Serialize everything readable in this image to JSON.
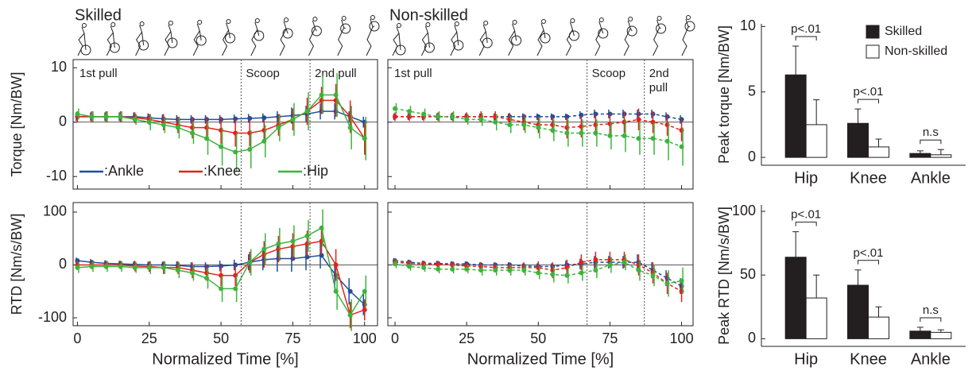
{
  "chart_data": [
    {
      "type": "line",
      "title": "Skilled",
      "ylabel": "Torque [Nm/BW]",
      "xlim": [
        -1.5,
        104.5
      ],
      "xticks": [
        0,
        25,
        50,
        75,
        100
      ],
      "ylim": [
        -12.3,
        11.5
      ],
      "yticks": [
        -10,
        0,
        10
      ],
      "zero_line": true,
      "phase_lines": [
        57,
        81
      ],
      "phases": [
        "1st pull",
        "Scoop",
        "2nd pull"
      ],
      "legend": "lower left",
      "x": [
        0,
        5,
        10,
        15,
        20,
        25,
        30,
        35,
        40,
        45,
        50,
        55,
        60,
        65,
        70,
        75,
        80,
        85,
        90,
        95,
        100
      ],
      "series": [
        {
          "name": ":Ankle",
          "color": "#1f4e9c",
          "linestyle": "solid",
          "values": [
            1,
            1,
            1,
            1,
            1,
            0.8,
            0.6,
            0.5,
            0.5,
            0.5,
            0.5,
            0.6,
            0.7,
            0.8,
            1,
            1.2,
            1.5,
            2,
            2,
            1,
            0
          ],
          "errors": [
            0.8,
            0.8,
            0.8,
            0.8,
            0.8,
            0.8,
            0.8,
            0.8,
            0.8,
            0.8,
            0.8,
            0.8,
            0.8,
            0.8,
            1,
            1.5,
            1.5,
            1.5,
            1.5,
            1,
            1
          ]
        },
        {
          "name": ":Knee",
          "color": "#e2231a",
          "linestyle": "solid",
          "values": [
            1,
            1,
            1,
            1,
            0.8,
            0.5,
            0,
            -0.5,
            -1,
            -1,
            -1.5,
            -2,
            -2,
            -1.5,
            -0.5,
            0.5,
            2,
            4,
            4,
            1,
            -3
          ],
          "errors": [
            1,
            1,
            1,
            1,
            1,
            1,
            1.5,
            1.5,
            2,
            2,
            2.5,
            2.5,
            2.5,
            2,
            2,
            2,
            2.5,
            2.5,
            3,
            3,
            3
          ]
        },
        {
          "name": ":Hip",
          "color": "#3cb43c",
          "linestyle": "solid",
          "values": [
            1.5,
            1,
            1,
            1,
            0.5,
            0,
            -0.5,
            -1,
            -2,
            -3,
            -4.5,
            -5.5,
            -5,
            -3.5,
            -1,
            0.5,
            2,
            5,
            5,
            -1,
            -3
          ],
          "errors": [
            1,
            1,
            1,
            1,
            1,
            1.5,
            1.5,
            2,
            2,
            3,
            3.5,
            3.5,
            3.5,
            3,
            2.5,
            3,
            3.5,
            3.5,
            4,
            4,
            4
          ]
        }
      ]
    },
    {
      "type": "line",
      "title": "Non-skilled",
      "xlim": [
        -2.5,
        104
      ],
      "xticks": [
        0,
        25,
        50,
        75,
        100
      ],
      "ylim": [
        -12.3,
        11.5
      ],
      "yticks": [
        -10,
        0,
        10
      ],
      "zero_line": true,
      "phase_lines": [
        67,
        87
      ],
      "phases": [
        "1st pull",
        "Scoop",
        "2nd pull"
      ],
      "x": [
        0,
        5,
        10,
        15,
        20,
        25,
        30,
        35,
        40,
        45,
        50,
        55,
        60,
        65,
        70,
        75,
        80,
        85,
        90,
        95,
        100
      ],
      "series": [
        {
          "name": ":Ankle",
          "color": "#1f4e9c",
          "linestyle": "dashed",
          "values": [
            1,
            1,
            1,
            1,
            1,
            1,
            1,
            1,
            1,
            1,
            1,
            1,
            1,
            1.3,
            1.5,
            1.5,
            1.5,
            1.5,
            1.5,
            1,
            0.5
          ],
          "errors": [
            0.6,
            0.6,
            0.6,
            0.6,
            0.6,
            0.6,
            0.6,
            0.6,
            0.6,
            0.6,
            0.6,
            0.6,
            0.6,
            0.7,
            0.8,
            0.8,
            0.8,
            0.8,
            0.8,
            0.8,
            0.8
          ]
        },
        {
          "name": ":Knee",
          "color": "#e2231a",
          "linestyle": "dashed",
          "values": [
            1,
            1,
            1,
            1,
            1,
            1,
            1,
            1,
            0.5,
            0,
            -0.5,
            -0.5,
            -1,
            -0.8,
            -0.5,
            -0.3,
            0,
            0.5,
            0,
            -0.5,
            -1.5
          ],
          "errors": [
            0.8,
            0.8,
            0.8,
            0.8,
            0.8,
            0.8,
            1,
            1,
            1.2,
            1.5,
            1.5,
            1.5,
            2,
            2,
            2,
            2,
            2,
            2,
            2,
            2,
            2
          ]
        },
        {
          "name": ":Hip",
          "color": "#3cb43c",
          "linestyle": "dashed",
          "values": [
            2.5,
            2,
            1.5,
            1,
            1,
            0.5,
            0.5,
            0,
            -0.5,
            -0.5,
            -1,
            -1.5,
            -2,
            -2,
            -2,
            -2.5,
            -2.5,
            -3,
            -3,
            -3.5,
            -4.5
          ],
          "errors": [
            1,
            1,
            1,
            1,
            1,
            1,
            1.2,
            1.5,
            1.5,
            1.5,
            2,
            2,
            2.5,
            2.5,
            2.5,
            2.5,
            3,
            3,
            3,
            3.5,
            3.5
          ]
        }
      ]
    },
    {
      "type": "line",
      "ylabel": "RTD [Nm/s/BW]",
      "xlabel": "Normalized Time [%]",
      "xlim": [
        -1.5,
        104.5
      ],
      "xticks": [
        0,
        25,
        50,
        75,
        100
      ],
      "ylim": [
        -115,
        118
      ],
      "yticks": [
        -100,
        0,
        100
      ],
      "zero_line": true,
      "phase_lines": [
        57,
        81
      ],
      "x": [
        0,
        5,
        10,
        15,
        20,
        25,
        30,
        35,
        40,
        45,
        50,
        55,
        60,
        65,
        70,
        75,
        80,
        85,
        90,
        95,
        100
      ],
      "series": [
        {
          "name": ":Ankle",
          "color": "#1f4e9c",
          "linestyle": "solid",
          "values": [
            8,
            5,
            3,
            2,
            1,
            0,
            0,
            -1,
            -3,
            -3,
            -2,
            0,
            5,
            10,
            12,
            12,
            15,
            18,
            -20,
            -50,
            -75
          ],
          "errors": [
            6,
            6,
            6,
            6,
            6,
            6,
            6,
            8,
            8,
            8,
            10,
            10,
            15,
            20,
            25,
            25,
            25,
            25,
            25,
            25,
            20
          ]
        },
        {
          "name": ":Knee",
          "color": "#e2231a",
          "linestyle": "solid",
          "values": [
            0,
            0,
            0,
            0,
            -2,
            -3,
            -5,
            -5,
            -10,
            -15,
            -20,
            -20,
            5,
            20,
            30,
            35,
            40,
            45,
            0,
            -95,
            -85
          ],
          "errors": [
            8,
            8,
            8,
            8,
            10,
            10,
            12,
            12,
            15,
            15,
            20,
            20,
            20,
            25,
            25,
            25,
            25,
            25,
            30,
            25,
            20
          ]
        },
        {
          "name": ":Hip",
          "color": "#3cb43c",
          "linestyle": "solid",
          "values": [
            -5,
            -3,
            -3,
            -3,
            -5,
            -5,
            -5,
            -10,
            -15,
            -25,
            -45,
            -45,
            5,
            30,
            40,
            45,
            55,
            70,
            -50,
            -95,
            -50
          ],
          "errors": [
            10,
            10,
            10,
            10,
            10,
            12,
            12,
            15,
            15,
            20,
            25,
            25,
            25,
            30,
            30,
            30,
            30,
            35,
            35,
            30,
            30
          ]
        }
      ]
    },
    {
      "type": "line",
      "xlabel": "Normalized Time [%]",
      "xlim": [
        -2.5,
        104
      ],
      "xticks": [
        0,
        25,
        50,
        75,
        100
      ],
      "ylim": [
        -115,
        118
      ],
      "yticks": [
        -100,
        0,
        100
      ],
      "zero_line": true,
      "phase_lines": [
        67,
        87
      ],
      "x": [
        0,
        5,
        10,
        15,
        20,
        25,
        30,
        35,
        40,
        45,
        50,
        55,
        60,
        65,
        70,
        75,
        80,
        85,
        90,
        95,
        100
      ],
      "series": [
        {
          "name": ":Ankle",
          "color": "#1f4e9c",
          "linestyle": "dashed",
          "values": [
            8,
            5,
            3,
            3,
            2,
            2,
            0,
            0,
            0,
            -2,
            -3,
            -3,
            0,
            2,
            5,
            5,
            5,
            5,
            -10,
            -25,
            -40
          ],
          "errors": [
            5,
            5,
            5,
            5,
            5,
            5,
            5,
            5,
            5,
            5,
            6,
            6,
            8,
            10,
            12,
            12,
            12,
            15,
            15,
            15,
            15
          ]
        },
        {
          "name": ":Knee",
          "color": "#e2231a",
          "linestyle": "dashed",
          "values": [
            5,
            3,
            2,
            1,
            0,
            -2,
            -3,
            -5,
            -5,
            -5,
            -5,
            -10,
            -5,
            5,
            10,
            10,
            10,
            0,
            -15,
            -35,
            -50
          ],
          "errors": [
            6,
            6,
            6,
            6,
            6,
            8,
            8,
            8,
            10,
            10,
            12,
            15,
            15,
            15,
            15,
            15,
            15,
            20,
            20,
            20,
            20
          ]
        },
        {
          "name": ":Hip",
          "color": "#3cb43c",
          "linestyle": "dashed",
          "values": [
            2,
            -3,
            -5,
            -8,
            -8,
            -8,
            -10,
            -10,
            -10,
            -10,
            -15,
            -18,
            -20,
            -15,
            -10,
            0,
            5,
            -10,
            -20,
            -35,
            -30
          ],
          "errors": [
            8,
            8,
            8,
            8,
            8,
            8,
            10,
            10,
            10,
            10,
            12,
            15,
            15,
            15,
            15,
            15,
            15,
            20,
            20,
            25,
            25
          ]
        }
      ]
    },
    {
      "type": "bar",
      "ylabel": "Peak torque [Nm/BW]",
      "ylim": [
        -0.6,
        10.2
      ],
      "yticks": [
        0,
        5,
        10
      ],
      "legend": "upper right",
      "categories": [
        "Hip",
        "Knee",
        "Ankle"
      ],
      "significance": [
        "p<.01",
        "p<.01",
        "n.s"
      ],
      "series": [
        {
          "name": "Skilled",
          "color": "#231f20",
          "values": [
            6.3,
            2.6,
            0.3
          ],
          "errors": [
            2.2,
            1.1,
            0.2
          ]
        },
        {
          "name": "Non-skilled",
          "color": "#ffffff",
          "values": [
            2.5,
            0.8,
            0.2
          ],
          "errors": [
            1.9,
            0.6,
            0.4
          ]
        }
      ]
    },
    {
      "type": "bar",
      "ylabel": "Peak RTD [Nm/s/BW]",
      "ylim": [
        -6,
        105
      ],
      "yticks": [
        0,
        50,
        100
      ],
      "categories": [
        "Hip",
        "Knee",
        "Ankle"
      ],
      "significance": [
        "p<.01",
        "p<.01",
        "n.s"
      ],
      "series": [
        {
          "name": "Skilled",
          "color": "#231f20",
          "values": [
            64,
            42,
            6
          ],
          "errors": [
            20,
            12,
            3
          ]
        },
        {
          "name": "Non-skilled",
          "color": "#ffffff",
          "values": [
            32,
            17,
            5
          ],
          "errors": [
            18,
            8,
            2
          ]
        }
      ]
    }
  ]
}
